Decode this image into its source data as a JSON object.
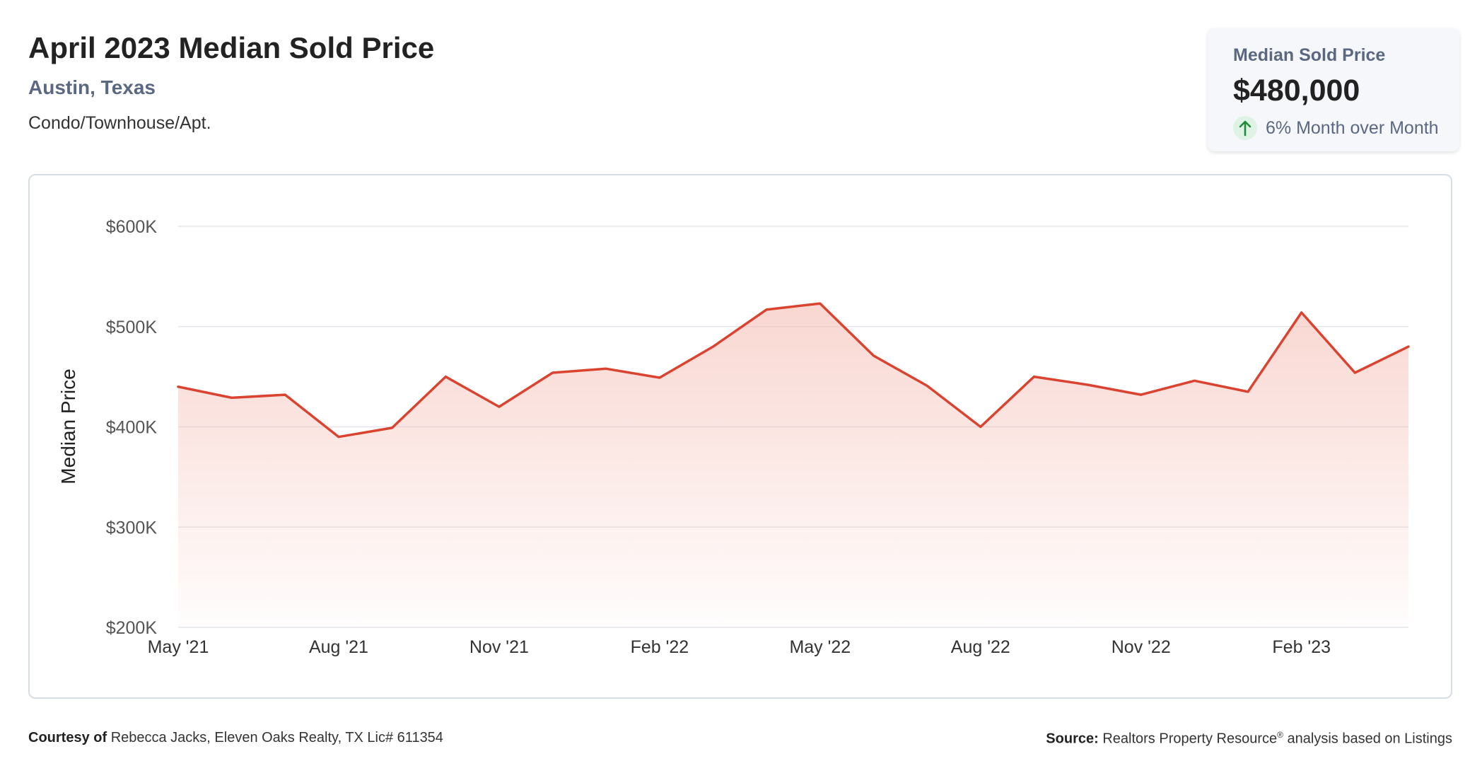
{
  "header": {
    "title": "April 2023 Median Sold Price",
    "location": "Austin, Texas",
    "property_type": "Condo/Townhouse/Apt."
  },
  "kpi": {
    "label": "Median Sold Price",
    "value": "$480,000",
    "change": "6% Month over Month",
    "direction_icon": "arrow-up-icon",
    "up_color": "#1e8a3a"
  },
  "footer": {
    "courtesy_label": "Courtesy of",
    "courtesy_text": "Rebecca Jacks, Eleven Oaks Realty, TX Lic# 611354",
    "source_label": "Source:",
    "source_text": "Realtors Property Resource",
    "source_mark": "®",
    "source_suffix": "analysis based on Listings"
  },
  "chart_data": {
    "type": "area",
    "ylabel": "Median Price",
    "ylim": [
      200000,
      600000
    ],
    "y_ticks": [
      {
        "value": 600000,
        "label": "$600K"
      },
      {
        "value": 500000,
        "label": "$500K"
      },
      {
        "value": 400000,
        "label": "$400K"
      },
      {
        "value": 300000,
        "label": "$300K"
      },
      {
        "value": 200000,
        "label": "$200K"
      }
    ],
    "x": [
      "2021-05",
      "2021-06",
      "2021-07",
      "2021-08",
      "2021-09",
      "2021-10",
      "2021-11",
      "2021-12",
      "2022-01",
      "2022-02",
      "2022-03",
      "2022-04",
      "2022-05",
      "2022-06",
      "2022-07",
      "2022-08",
      "2022-09",
      "2022-10",
      "2022-11",
      "2022-12",
      "2023-01",
      "2023-02",
      "2023-03",
      "2023-04"
    ],
    "x_ticks": [
      {
        "x": "2021-05",
        "label": "May '21"
      },
      {
        "x": "2021-08",
        "label": "Aug '21"
      },
      {
        "x": "2021-11",
        "label": "Nov '21"
      },
      {
        "x": "2022-02",
        "label": "Feb '22"
      },
      {
        "x": "2022-05",
        "label": "May '22"
      },
      {
        "x": "2022-08",
        "label": "Aug '22"
      },
      {
        "x": "2022-11",
        "label": "Nov '22"
      },
      {
        "x": "2023-02",
        "label": "Feb '23"
      }
    ],
    "values": [
      440000,
      429000,
      432000,
      390000,
      399000,
      450000,
      420000,
      454000,
      458000,
      449000,
      480000,
      517000,
      523000,
      471000,
      441000,
      400000,
      450000,
      442000,
      432000,
      446000,
      435000,
      514000,
      454000,
      480000
    ],
    "line_color": "#d9432f",
    "fill_color": "#f4b6ac",
    "grid": true
  }
}
